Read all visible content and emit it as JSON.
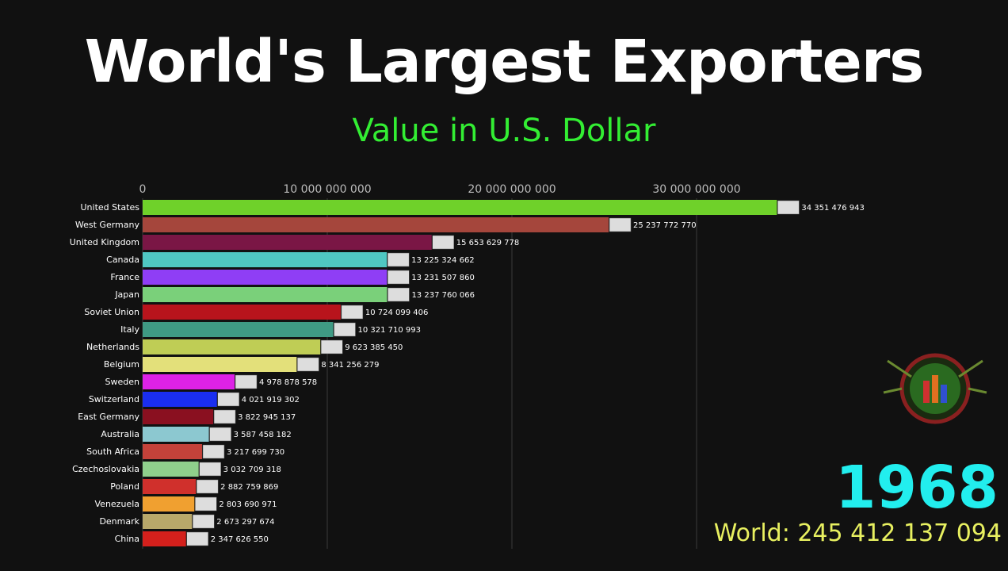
{
  "title": "World's Largest Exporters",
  "subtitle": "Value in U.S. Dollar",
  "year": "1968",
  "world_total": "World: 245 412 137 094",
  "chart_data": {
    "type": "bar",
    "orientation": "horizontal",
    "xlim": [
      0,
      40000000000
    ],
    "x_ticks": [
      0,
      10000000000,
      20000000000,
      30000000000
    ],
    "x_tick_labels": [
      "0",
      "10 000 000 000",
      "20 000 000 000",
      "30 000 000 000"
    ],
    "grid": true,
    "categories": [
      "United States",
      "West Germany",
      "United Kingdom",
      "Canada",
      "France",
      "Japan",
      "Soviet Union",
      "Italy",
      "Netherlands",
      "Belgium",
      "Sweden",
      "Switzerland",
      "East Germany",
      "Australia",
      "South Africa",
      "Czechoslovakia",
      "Poland",
      "Venezuela",
      "Denmark",
      "China"
    ],
    "values": [
      34351476943,
      25237772770,
      15653629778,
      13225324662,
      13231507860,
      13237760066,
      10724099406,
      10321710993,
      9623385450,
      8341256279,
      4978878578,
      4021919302,
      3822945137,
      3587458182,
      3217699730,
      3032709318,
      2882759869,
      2803690971,
      2673297674,
      2347626550
    ],
    "value_labels": [
      "34 351 476 943",
      "25 237 772 770",
      "15 653 629 778",
      "13 225 324 662",
      "13 231 507 860",
      "13 237 760 066",
      "10 724 099 406",
      "10 321 710 993",
      "9 623 385 450",
      "8 341 256 279",
      "4 978 878 578",
      "4 021 919 302",
      "3 822 945 137",
      "3 587 458 182",
      "3 217 699 730",
      "3 032 709 318",
      "2 882 759 869",
      "2 803 690 971",
      "2 673 297 674",
      "2 347 626 550"
    ],
    "colors": [
      "#6fd12a",
      "#a5463c",
      "#7a1645",
      "#4fc7c2",
      "#8f3ef5",
      "#7ad07a",
      "#b8141c",
      "#3f9a84",
      "#bfcd55",
      "#e3e07a",
      "#dd22e6",
      "#1a2ef0",
      "#8a1020",
      "#8cc8d0",
      "#c4423a",
      "#8fd08c",
      "#d0302c",
      "#f0a030",
      "#b8a86a",
      "#d4201c"
    ]
  }
}
